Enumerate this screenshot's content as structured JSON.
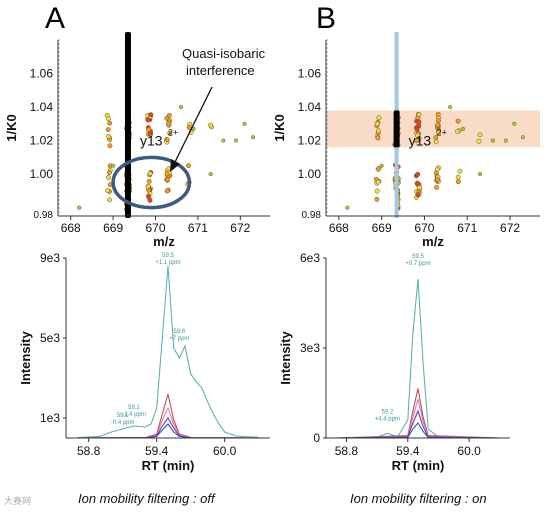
{
  "panels": {
    "A": {
      "letter": "A",
      "annotation": "Quasi-isobaric interference",
      "caption": "Ion mobility  filtering : off"
    },
    "B": {
      "letter": "B",
      "caption": "Ion mobility  filtering : on"
    }
  },
  "watermark": "大赛网",
  "colors": {
    "mobility_bar_off": "#000000",
    "mobility_bar_on": "#9ecae1",
    "filter_band": "#f8dcc8",
    "circle": "#3d5a80",
    "trace_teal": "#5bb3ad",
    "trace_red": "#c0504d",
    "trace_pink": "#e07ab0",
    "trace_purple": "#6a3d9a",
    "trace_blue": "#3050c0",
    "label_teal": "#3a9a94",
    "dot_red": "#e8402a",
    "dot_orange": "#f29a2e",
    "dot_yellow": "#e8e04a",
    "dot_green": "#a8c84a"
  },
  "chart_data": [
    {
      "id": "A-mobility",
      "type": "scatter",
      "xlabel": "m/z",
      "ylabel": "1/K0",
      "xlim": [
        667.7,
        672.7
      ],
      "ylim": [
        0.975,
        1.08
      ],
      "xticks": [
        668,
        669,
        670,
        671,
        672
      ],
      "yticks": [
        1.0,
        1.02,
        1.04,
        1.06
      ],
      "ytick_labels": [
        "1.00",
        "1.02",
        "1.04",
        "1.06"
      ],
      "ybottom_label": "0.98",
      "ion_label": "y13",
      "ion_charge": "2+",
      "ion_mz": 669.35,
      "ion_k0": 1.035,
      "highlight_bar": {
        "mz": 669.35,
        "range": [
          0.975,
          1.08
        ],
        "style": "off"
      },
      "circle": {
        "mz": [
          669.0,
          670.8
        ],
        "k0": [
          0.98,
          1.01
        ]
      }
    },
    {
      "id": "B-mobility",
      "type": "scatter",
      "xlabel": "m/z",
      "ylabel": "1/K0",
      "xlim": [
        667.7,
        672.7
      ],
      "ylim": [
        0.975,
        1.08
      ],
      "xticks": [
        668,
        669,
        670,
        671,
        672
      ],
      "yticks": [
        1.0,
        1.02,
        1.04,
        1.06
      ],
      "ytick_labels": [
        "1.00",
        "1.02",
        "1.04",
        "1.06"
      ],
      "ybottom_label": "0.98",
      "ion_label": "y13",
      "ion_charge": "2+",
      "ion_mz": 669.35,
      "ion_k0": 1.035,
      "highlight_bar": {
        "mz": 669.35,
        "range": [
          0.975,
          1.08
        ],
        "style": "on"
      },
      "filter_band": {
        "k0": [
          1.016,
          1.038
        ]
      }
    },
    {
      "id": "A-xic",
      "type": "line",
      "xlabel": "RT (min)",
      "ylabel": "Intensity",
      "xlim": [
        58.6,
        60.4
      ],
      "ylim": [
        0,
        9000
      ],
      "xticks": [
        58.8,
        59.4,
        60.0
      ],
      "xtick_labels": [
        "58.8",
        "59.4",
        "60.0"
      ],
      "yticks": [
        1000,
        5000,
        9000
      ],
      "ytick_labels": [
        "1e3",
        "5e3",
        "9e3"
      ],
      "peak_labels": [
        {
          "rt": 59.5,
          "y": 8600,
          "label": "59.5",
          "sub": "+1.1 ppm"
        },
        {
          "rt": 59.6,
          "y": 4800,
          "label": "59.6",
          "sub": "+7 ppm"
        },
        {
          "rt": 59.2,
          "y": 1000,
          "label": "59.2",
          "sub": "-1.4 ppm"
        },
        {
          "rt": 59.1,
          "y": 600,
          "label": "59.1",
          "sub": "-0.4 ppm"
        }
      ],
      "series": [
        {
          "color": "trace_teal",
          "x": [
            58.7,
            58.9,
            59.0,
            59.1,
            59.2,
            59.3,
            59.35,
            59.4,
            59.45,
            59.5,
            59.55,
            59.6,
            59.65,
            59.7,
            59.75,
            59.8,
            59.85,
            59.9,
            59.95,
            60.0,
            60.1,
            60.3
          ],
          "y": [
            20,
            80,
            300,
            450,
            600,
            550,
            700,
            1500,
            5000,
            8600,
            4500,
            4000,
            4600,
            3200,
            2800,
            2500,
            1800,
            1200,
            700,
            300,
            100,
            30
          ]
        },
        {
          "color": "trace_red",
          "x": [
            58.7,
            59.3,
            59.4,
            59.45,
            59.5,
            59.55,
            59.6,
            59.7,
            60.3
          ],
          "y": [
            0,
            20,
            200,
            1200,
            2200,
            900,
            200,
            30,
            0
          ]
        },
        {
          "color": "trace_pink",
          "x": [
            58.7,
            59.3,
            59.4,
            59.45,
            59.5,
            59.55,
            59.6,
            59.7,
            60.3
          ],
          "y": [
            0,
            20,
            150,
            900,
            1500,
            700,
            150,
            20,
            0
          ]
        },
        {
          "color": "trace_purple",
          "x": [
            58.7,
            59.3,
            59.4,
            59.45,
            59.5,
            59.55,
            59.6,
            59.7,
            60.3
          ],
          "y": [
            0,
            10,
            100,
            600,
            1000,
            500,
            100,
            10,
            0
          ]
        },
        {
          "color": "trace_blue",
          "x": [
            58.7,
            59.3,
            59.4,
            59.45,
            59.5,
            59.55,
            59.6,
            59.7,
            60.3
          ],
          "y": [
            0,
            10,
            80,
            400,
            700,
            300,
            80,
            10,
            0
          ]
        }
      ]
    },
    {
      "id": "B-xic",
      "type": "line",
      "xlabel": "RT (min)",
      "ylabel": "Intensity",
      "xlim": [
        58.6,
        60.4
      ],
      "ylim": [
        0,
        6000
      ],
      "xticks": [
        58.8,
        59.4,
        60.0
      ],
      "xtick_labels": [
        "58.8",
        "59.4",
        "60.0"
      ],
      "yticks": [
        0,
        3000,
        6000
      ],
      "ytick_labels": [
        "0",
        "3e3",
        "6e3"
      ],
      "peak_labels": [
        {
          "rt": 59.5,
          "y": 5700,
          "label": "59.5",
          "sub": "+0.7 ppm"
        },
        {
          "rt": 59.2,
          "y": 520,
          "label": "59.2",
          "sub": "+4.4 ppm"
        }
      ],
      "series": [
        {
          "color": "trace_teal",
          "x": [
            58.7,
            59.1,
            59.2,
            59.3,
            59.4,
            59.45,
            59.5,
            59.55,
            59.6,
            59.7,
            60.3
          ],
          "y": [
            0,
            20,
            160,
            40,
            600,
            3500,
            5300,
            2500,
            300,
            30,
            0
          ]
        },
        {
          "color": "trace_red",
          "x": [
            58.7,
            59.4,
            59.45,
            59.5,
            59.55,
            59.6,
            60.3
          ],
          "y": [
            0,
            80,
            900,
            1650,
            700,
            80,
            0
          ]
        },
        {
          "color": "trace_pink",
          "x": [
            58.7,
            59.4,
            59.45,
            59.5,
            59.55,
            59.6,
            60.3
          ],
          "y": [
            0,
            60,
            700,
            1300,
            550,
            60,
            0
          ]
        },
        {
          "color": "trace_purple",
          "x": [
            58.7,
            59.4,
            59.45,
            59.5,
            59.55,
            59.6,
            60.3
          ],
          "y": [
            0,
            40,
            500,
            900,
            380,
            40,
            0
          ]
        },
        {
          "color": "trace_blue",
          "x": [
            58.7,
            59.4,
            59.45,
            59.5,
            59.55,
            59.6,
            60.3
          ],
          "y": [
            0,
            20,
            300,
            500,
            220,
            20,
            0
          ]
        }
      ]
    }
  ]
}
